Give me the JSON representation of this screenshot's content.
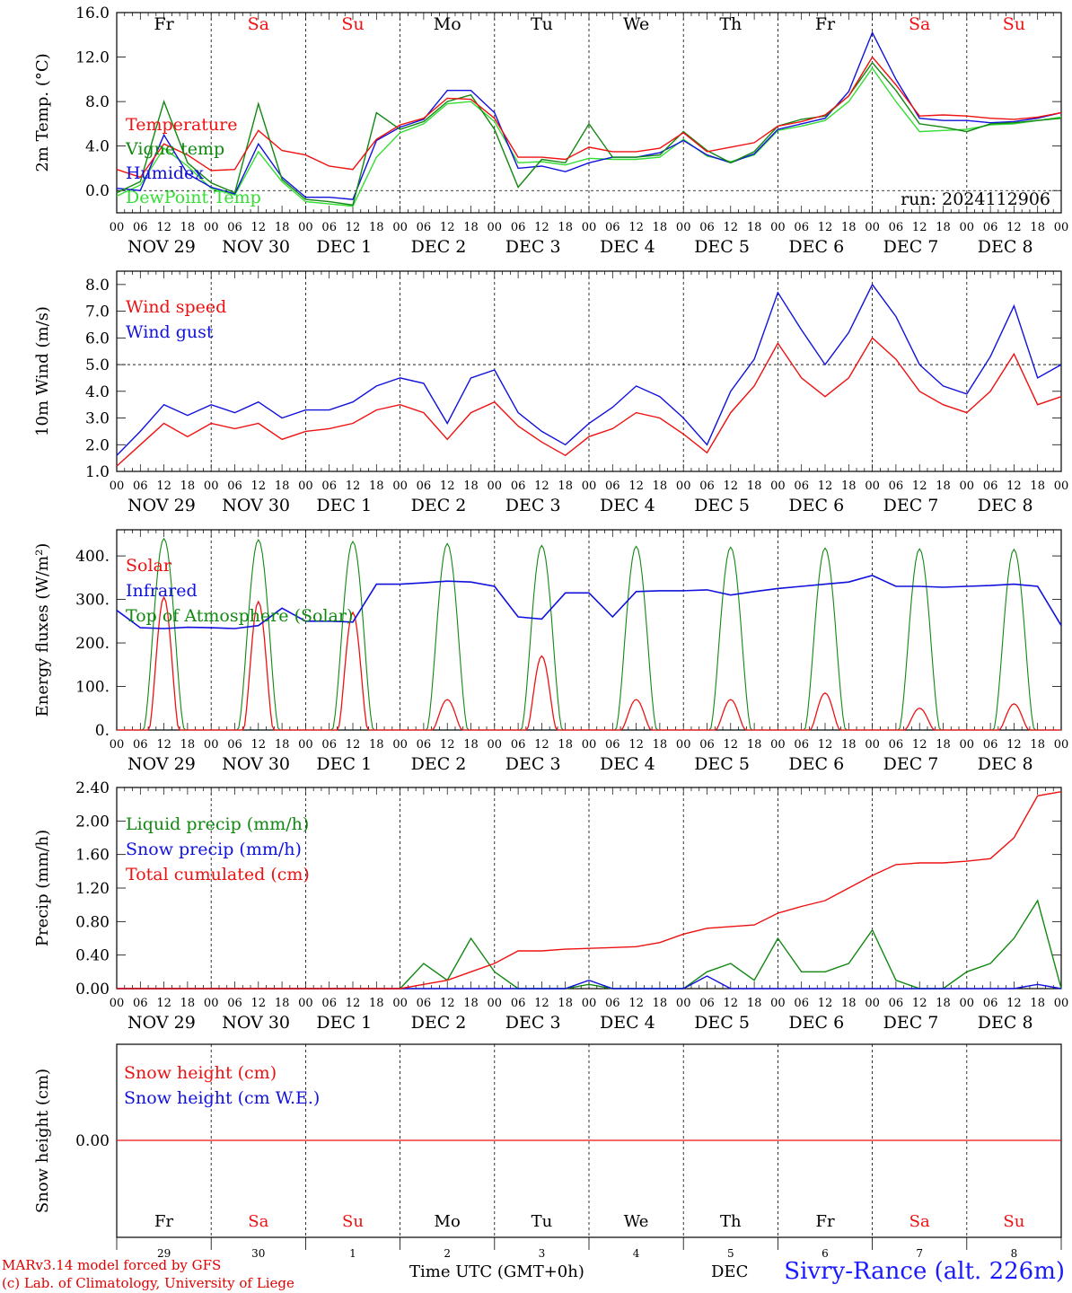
{
  "run_label": "run: 2024112906",
  "footer": {
    "model_line": "MARv3.14 model forced by GFS",
    "copyright_line": "(c) Lab. of Climatology, University of Liege",
    "time_axis": "Time UTC (GMT+0h)",
    "dec_fragment": "DEC",
    "station": "Sivry-Rance (alt. 226m)"
  },
  "colors": {
    "red": "#ee1111",
    "green": "#118811",
    "blue": "#1111dd",
    "lightgreen": "#33dd33",
    "weekend": "#ee1111"
  },
  "weekdays": [
    "Fr",
    "Sa",
    "Su",
    "Mo",
    "Tu",
    "We",
    "Th",
    "Fr",
    "Sa",
    "Su"
  ],
  "weekend_flags": [
    false,
    true,
    true,
    false,
    false,
    false,
    false,
    false,
    true,
    true
  ],
  "date_labels": [
    "NOV 29",
    "NOV 30",
    "DEC  1",
    "DEC  2",
    "DEC  3",
    "DEC  4",
    "DEC  5",
    "DEC  6",
    "DEC  7",
    "DEC  8"
  ],
  "day_numbers": [
    "29",
    "30",
    "1",
    "2",
    "3",
    "4",
    "5",
    "6",
    "7",
    "8"
  ],
  "hour_ticks": [
    "00",
    "06",
    "12",
    "18"
  ],
  "final_hour": "00",
  "chart_data": [
    {
      "type": "line",
      "ylabel": "2m Temp. (°C)",
      "ylim": [
        -2,
        16
      ],
      "yticks": [
        "16.0",
        "12.0",
        "8.0",
        "4.0",
        "0.0"
      ],
      "ytick_values": [
        16,
        12,
        8,
        4,
        0
      ],
      "ref_line": 0,
      "x_hours": [
        0,
        6,
        12,
        18,
        24,
        30,
        36,
        42,
        48,
        54,
        60,
        66,
        72,
        78,
        84,
        90,
        96,
        102,
        108,
        114,
        120,
        126,
        132,
        138,
        144,
        150,
        156,
        162,
        168,
        174,
        180,
        186,
        192,
        198,
        204,
        210,
        216,
        222,
        228,
        234,
        240
      ],
      "series": [
        {
          "name": "Temperature",
          "color": "red",
          "values": [
            1.9,
            1.2,
            4.2,
            3.2,
            1.8,
            1.9,
            5.4,
            3.6,
            3.2,
            2.2,
            1.9,
            4.6,
            5.9,
            6.5,
            8.3,
            8.2,
            6.5,
            3.0,
            3.0,
            2.8,
            3.9,
            3.5,
            3.5,
            3.8,
            5.2,
            3.5,
            3.9,
            4.3,
            5.8,
            6.2,
            6.8,
            8.5,
            12.0,
            9.5,
            6.7,
            6.8,
            6.7,
            6.5,
            6.4,
            6.6,
            7.0
          ]
        },
        {
          "name": "Vigne temp",
          "color": "green",
          "values": [
            -0.2,
            0.8,
            8.0,
            2.5,
            0.7,
            -0.2,
            7.8,
            1.0,
            -0.8,
            -1.0,
            -1.3,
            7.0,
            5.5,
            6.2,
            8.0,
            8.6,
            5.5,
            0.3,
            2.8,
            2.5,
            6.0,
            3.0,
            3.0,
            3.2,
            5.3,
            3.6,
            2.5,
            3.5,
            5.8,
            6.4,
            6.7,
            8.5,
            11.5,
            9.0,
            6.0,
            5.7,
            5.3,
            6.0,
            6.1,
            6.3,
            6.5
          ]
        },
        {
          "name": "Humidex",
          "color": "blue",
          "values": [
            0.2,
            0.0,
            5.0,
            1.5,
            0.3,
            -0.3,
            4.2,
            1.2,
            -0.6,
            -0.6,
            -0.8,
            4.5,
            5.7,
            6.4,
            9.0,
            9.0,
            7.0,
            2.0,
            2.2,
            1.7,
            2.5,
            3.0,
            3.0,
            3.4,
            4.5,
            3.2,
            2.5,
            3.3,
            5.5,
            6.0,
            6.5,
            8.9,
            14.2,
            10.0,
            6.5,
            6.3,
            6.3,
            6.1,
            6.2,
            6.5,
            7.0
          ]
        },
        {
          "name": "DewPoint Temp",
          "color": "lightgreen",
          "values": [
            -0.5,
            0.5,
            3.8,
            2.2,
            0.2,
            -0.4,
            3.5,
            0.8,
            -1.0,
            -1.2,
            -1.4,
            3.0,
            5.2,
            6.0,
            7.8,
            8.0,
            6.2,
            2.5,
            2.6,
            2.3,
            2.9,
            2.8,
            2.8,
            3.0,
            4.6,
            3.1,
            2.6,
            3.2,
            5.4,
            5.8,
            6.3,
            8.0,
            11.0,
            8.0,
            5.3,
            5.4,
            5.5,
            5.9,
            6.0,
            6.3,
            6.6
          ]
        }
      ]
    },
    {
      "type": "line",
      "ylabel": "10m Wind (m/s)",
      "ylim": [
        1,
        8.5
      ],
      "yticks": [
        "8.0",
        "7.0",
        "6.0",
        "5.0",
        "4.0",
        "3.0",
        "2.0",
        "1.0"
      ],
      "ytick_values": [
        8,
        7,
        6,
        5,
        4,
        3,
        2,
        1
      ],
      "ref_line": 5,
      "x_hours": [
        0,
        6,
        12,
        18,
        24,
        30,
        36,
        42,
        48,
        54,
        60,
        66,
        72,
        78,
        84,
        90,
        96,
        102,
        108,
        114,
        120,
        126,
        132,
        138,
        144,
        150,
        156,
        162,
        168,
        174,
        180,
        186,
        192,
        198,
        204,
        210,
        216,
        222,
        228,
        234,
        240
      ],
      "series": [
        {
          "name": "Wind speed",
          "color": "red",
          "values": [
            1.2,
            2.0,
            2.8,
            2.3,
            2.8,
            2.6,
            2.8,
            2.2,
            2.5,
            2.6,
            2.8,
            3.3,
            3.5,
            3.2,
            2.2,
            3.2,
            3.6,
            2.7,
            2.1,
            1.6,
            2.3,
            2.6,
            3.2,
            3.0,
            2.4,
            1.7,
            3.2,
            4.2,
            5.8,
            4.5,
            3.8,
            4.5,
            6.0,
            5.2,
            4.0,
            3.5,
            3.2,
            4.0,
            5.4,
            3.5,
            3.8
          ]
        },
        {
          "name": "Wind gust",
          "color": "blue",
          "values": [
            1.6,
            2.5,
            3.5,
            3.1,
            3.5,
            3.2,
            3.6,
            3.0,
            3.3,
            3.3,
            3.6,
            4.2,
            4.5,
            4.3,
            2.8,
            4.5,
            4.8,
            3.2,
            2.5,
            2.0,
            2.8,
            3.4,
            4.2,
            3.8,
            3.0,
            2.0,
            4.0,
            5.2,
            7.7,
            6.3,
            5.0,
            6.2,
            8.0,
            6.8,
            5.0,
            4.2,
            3.9,
            5.3,
            7.2,
            4.5,
            5.0
          ]
        }
      ]
    },
    {
      "type": "line",
      "ylabel": "Energy fluxes (W/m²)",
      "ylim": [
        0,
        460
      ],
      "yticks": [
        "400.",
        "300.",
        "200.",
        "100.",
        "0."
      ],
      "ytick_values": [
        400,
        300,
        200,
        100,
        0
      ],
      "series": [
        {
          "name": "Solar",
          "color": "red",
          "daily_peaks": [
            305,
            295,
            270,
            70,
            170,
            70,
            70,
            85,
            50,
            60
          ]
        },
        {
          "name": "Infrared",
          "color": "blue",
          "x_hours": [
            0,
            6,
            12,
            18,
            24,
            30,
            36,
            42,
            48,
            54,
            60,
            66,
            72,
            78,
            84,
            90,
            96,
            102,
            108,
            114,
            120,
            126,
            132,
            138,
            144,
            150,
            156,
            162,
            168,
            174,
            180,
            186,
            192,
            198,
            204,
            210,
            216,
            222,
            228,
            234,
            240
          ],
          "values": [
            275,
            235,
            233,
            236,
            235,
            233,
            240,
            280,
            250,
            250,
            248,
            335,
            335,
            338,
            342,
            340,
            330,
            260,
            255,
            315,
            315,
            260,
            318,
            320,
            320,
            322,
            310,
            318,
            325,
            330,
            335,
            340,
            355,
            330,
            330,
            328,
            330,
            332,
            335,
            330,
            240
          ]
        },
        {
          "name": "Top of Atmosphere (Solar)",
          "color": "green",
          "daily_peaks": [
            440,
            437,
            433,
            428,
            424,
            422,
            420,
            418,
            416,
            415
          ]
        }
      ]
    },
    {
      "type": "line",
      "ylabel": "Precip (mm/h)",
      "ylim": [
        0,
        2.4
      ],
      "yticks": [
        "2.40",
        "2.00",
        "1.60",
        "1.20",
        "0.80",
        "0.40",
        "0.00"
      ],
      "ytick_values": [
        2.4,
        2.0,
        1.6,
        1.2,
        0.8,
        0.4,
        0.0
      ],
      "x_hours": [
        0,
        6,
        12,
        18,
        24,
        30,
        36,
        42,
        48,
        54,
        60,
        66,
        72,
        78,
        84,
        90,
        96,
        102,
        108,
        114,
        120,
        126,
        132,
        138,
        144,
        150,
        156,
        162,
        168,
        174,
        180,
        186,
        192,
        198,
        204,
        210,
        216,
        222,
        228,
        234,
        240
      ],
      "series": [
        {
          "name": "Liquid precip (mm/h)",
          "color": "green",
          "values": [
            0,
            0,
            0,
            0,
            0,
            0,
            0,
            0,
            0,
            0,
            0,
            0,
            0,
            0.3,
            0.1,
            0.6,
            0.2,
            0,
            0,
            0,
            0.05,
            0,
            0,
            0,
            0,
            0.2,
            0.3,
            0.1,
            0.6,
            0.2,
            0.2,
            0.3,
            0.7,
            0.1,
            0,
            0,
            0.2,
            0.3,
            0.6,
            1.05,
            0
          ]
        },
        {
          "name": "Snow precip (mm/h)",
          "color": "blue",
          "values": [
            0,
            0,
            0,
            0,
            0,
            0,
            0,
            0,
            0,
            0,
            0,
            0,
            0,
            0,
            0,
            0,
            0,
            0,
            0,
            0,
            0.1,
            0,
            0,
            0,
            0,
            0.15,
            0,
            0,
            0,
            0,
            0,
            0,
            0,
            0,
            0,
            0,
            0,
            0,
            0,
            0.05,
            0
          ]
        },
        {
          "name": "Total cumulated (cm)",
          "color": "red",
          "values": [
            0,
            0,
            0,
            0,
            0,
            0,
            0,
            0,
            0,
            0,
            0,
            0,
            0,
            0.05,
            0.1,
            0.2,
            0.3,
            0.45,
            0.45,
            0.47,
            0.48,
            0.49,
            0.5,
            0.55,
            0.65,
            0.72,
            0.74,
            0.76,
            0.9,
            0.98,
            1.05,
            1.2,
            1.35,
            1.48,
            1.5,
            1.5,
            1.52,
            1.55,
            1.8,
            2.3,
            2.35
          ]
        }
      ]
    },
    {
      "type": "line",
      "ylabel": "Snow height (cm)",
      "yticks": [
        "0.00"
      ],
      "ytick_values": [
        0
      ],
      "series": [
        {
          "name": "Snow height (cm)",
          "color": "red",
          "values": [
            0
          ]
        },
        {
          "name": "Snow height (cm W.E.)",
          "color": "blue",
          "values": [
            0
          ]
        }
      ]
    }
  ]
}
